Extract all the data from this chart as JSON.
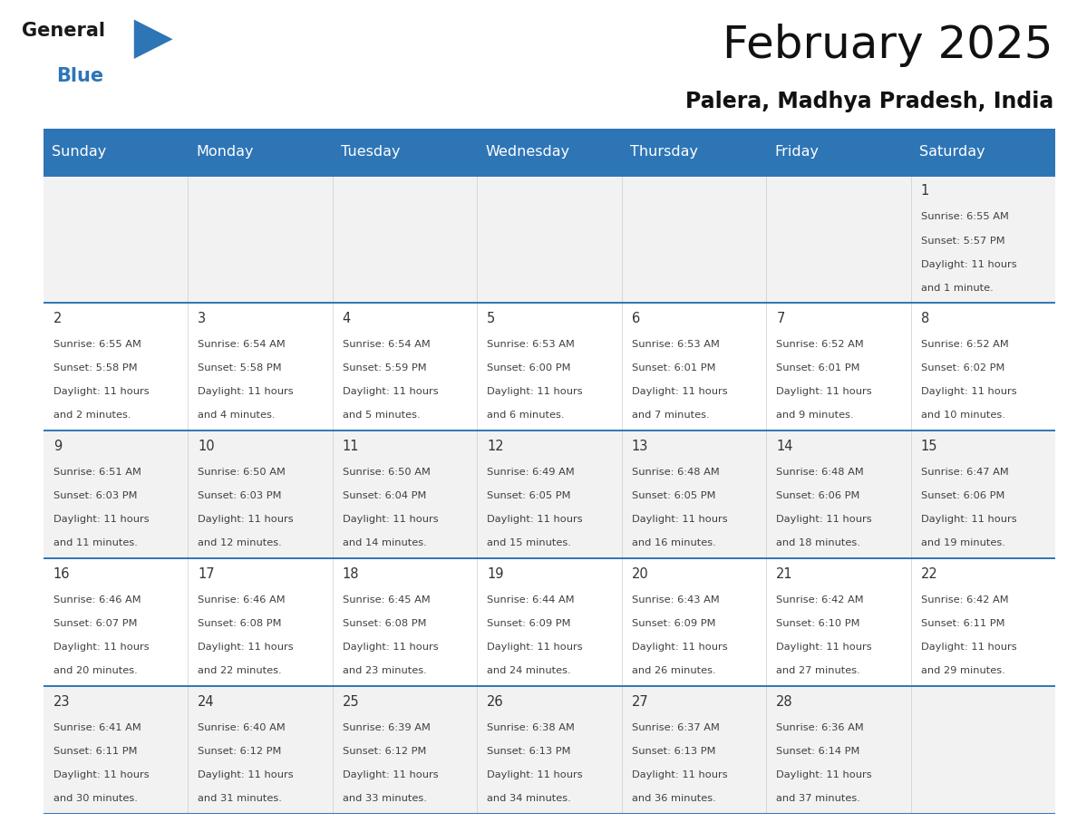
{
  "title": "February 2025",
  "subtitle": "Palera, Madhya Pradesh, India",
  "header_bg": "#2E75B6",
  "header_text_color": "#FFFFFF",
  "line_color": "#2E75B6",
  "cell_bg_light": "#F2F2F2",
  "cell_bg_white": "#FFFFFF",
  "info_text_color": "#404040",
  "day_number_color": "#333333",
  "days_of_week": [
    "Sunday",
    "Monday",
    "Tuesday",
    "Wednesday",
    "Thursday",
    "Friday",
    "Saturday"
  ],
  "calendar_data": [
    [
      null,
      null,
      null,
      null,
      null,
      null,
      {
        "day": "1",
        "sunrise": "6:55 AM",
        "sunset": "5:57 PM",
        "daylight": "11 hours",
        "daylight2": "and 1 minute."
      }
    ],
    [
      {
        "day": "2",
        "sunrise": "6:55 AM",
        "sunset": "5:58 PM",
        "daylight": "11 hours",
        "daylight2": "and 2 minutes."
      },
      {
        "day": "3",
        "sunrise": "6:54 AM",
        "sunset": "5:58 PM",
        "daylight": "11 hours",
        "daylight2": "and 4 minutes."
      },
      {
        "day": "4",
        "sunrise": "6:54 AM",
        "sunset": "5:59 PM",
        "daylight": "11 hours",
        "daylight2": "and 5 minutes."
      },
      {
        "day": "5",
        "sunrise": "6:53 AM",
        "sunset": "6:00 PM",
        "daylight": "11 hours",
        "daylight2": "and 6 minutes."
      },
      {
        "day": "6",
        "sunrise": "6:53 AM",
        "sunset": "6:01 PM",
        "daylight": "11 hours",
        "daylight2": "and 7 minutes."
      },
      {
        "day": "7",
        "sunrise": "6:52 AM",
        "sunset": "6:01 PM",
        "daylight": "11 hours",
        "daylight2": "and 9 minutes."
      },
      {
        "day": "8",
        "sunrise": "6:52 AM",
        "sunset": "6:02 PM",
        "daylight": "11 hours",
        "daylight2": "and 10 minutes."
      }
    ],
    [
      {
        "day": "9",
        "sunrise": "6:51 AM",
        "sunset": "6:03 PM",
        "daylight": "11 hours",
        "daylight2": "and 11 minutes."
      },
      {
        "day": "10",
        "sunrise": "6:50 AM",
        "sunset": "6:03 PM",
        "daylight": "11 hours",
        "daylight2": "and 12 minutes."
      },
      {
        "day": "11",
        "sunrise": "6:50 AM",
        "sunset": "6:04 PM",
        "daylight": "11 hours",
        "daylight2": "and 14 minutes."
      },
      {
        "day": "12",
        "sunrise": "6:49 AM",
        "sunset": "6:05 PM",
        "daylight": "11 hours",
        "daylight2": "and 15 minutes."
      },
      {
        "day": "13",
        "sunrise": "6:48 AM",
        "sunset": "6:05 PM",
        "daylight": "11 hours",
        "daylight2": "and 16 minutes."
      },
      {
        "day": "14",
        "sunrise": "6:48 AM",
        "sunset": "6:06 PM",
        "daylight": "11 hours",
        "daylight2": "and 18 minutes."
      },
      {
        "day": "15",
        "sunrise": "6:47 AM",
        "sunset": "6:06 PM",
        "daylight": "11 hours",
        "daylight2": "and 19 minutes."
      }
    ],
    [
      {
        "day": "16",
        "sunrise": "6:46 AM",
        "sunset": "6:07 PM",
        "daylight": "11 hours",
        "daylight2": "and 20 minutes."
      },
      {
        "day": "17",
        "sunrise": "6:46 AM",
        "sunset": "6:08 PM",
        "daylight": "11 hours",
        "daylight2": "and 22 minutes."
      },
      {
        "day": "18",
        "sunrise": "6:45 AM",
        "sunset": "6:08 PM",
        "daylight": "11 hours",
        "daylight2": "and 23 minutes."
      },
      {
        "day": "19",
        "sunrise": "6:44 AM",
        "sunset": "6:09 PM",
        "daylight": "11 hours",
        "daylight2": "and 24 minutes."
      },
      {
        "day": "20",
        "sunrise": "6:43 AM",
        "sunset": "6:09 PM",
        "daylight": "11 hours",
        "daylight2": "and 26 minutes."
      },
      {
        "day": "21",
        "sunrise": "6:42 AM",
        "sunset": "6:10 PM",
        "daylight": "11 hours",
        "daylight2": "and 27 minutes."
      },
      {
        "day": "22",
        "sunrise": "6:42 AM",
        "sunset": "6:11 PM",
        "daylight": "11 hours",
        "daylight2": "and 29 minutes."
      }
    ],
    [
      {
        "day": "23",
        "sunrise": "6:41 AM",
        "sunset": "6:11 PM",
        "daylight": "11 hours",
        "daylight2": "and 30 minutes."
      },
      {
        "day": "24",
        "sunrise": "6:40 AM",
        "sunset": "6:12 PM",
        "daylight": "11 hours",
        "daylight2": "and 31 minutes."
      },
      {
        "day": "25",
        "sunrise": "6:39 AM",
        "sunset": "6:12 PM",
        "daylight": "11 hours",
        "daylight2": "and 33 minutes."
      },
      {
        "day": "26",
        "sunrise": "6:38 AM",
        "sunset": "6:13 PM",
        "daylight": "11 hours",
        "daylight2": "and 34 minutes."
      },
      {
        "day": "27",
        "sunrise": "6:37 AM",
        "sunset": "6:13 PM",
        "daylight": "11 hours",
        "daylight2": "and 36 minutes."
      },
      {
        "day": "28",
        "sunrise": "6:36 AM",
        "sunset": "6:14 PM",
        "daylight": "11 hours",
        "daylight2": "and 37 minutes."
      },
      null
    ]
  ],
  "title_fontsize": 36,
  "subtitle_fontsize": 17,
  "day_name_fontsize": 11.5,
  "day_number_fontsize": 10.5,
  "info_fontsize": 8.2
}
